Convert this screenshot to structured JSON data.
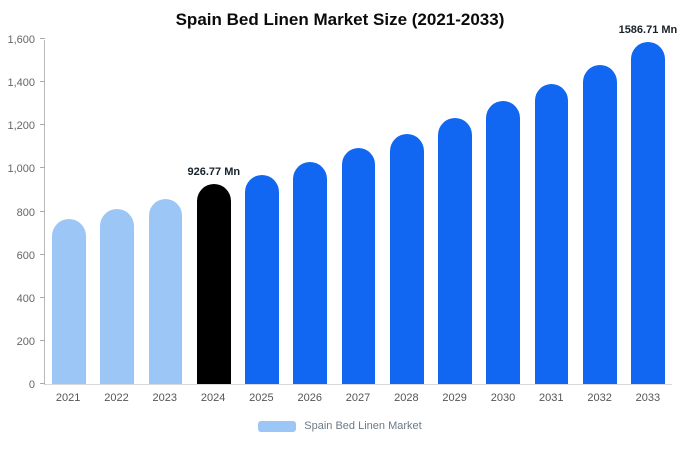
{
  "legend": {
    "label": "Spain Bed Linen Market",
    "swatch_color": "#9cc6f6"
  },
  "chart_data": {
    "type": "bar",
    "title": "Spain Bed Linen Market Size (2021-2033)",
    "categories": [
      "2021",
      "2022",
      "2023",
      "2024",
      "2025",
      "2026",
      "2027",
      "2028",
      "2029",
      "2030",
      "2031",
      "2032",
      "2033"
    ],
    "values": [
      765,
      810,
      860,
      926.77,
      970,
      1030,
      1095,
      1160,
      1235,
      1312,
      1392,
      1480,
      1586.71
    ],
    "bar_colors": [
      "#9cc6f6",
      "#9cc6f6",
      "#9cc6f6",
      "#000000",
      "#1267f2",
      "#1267f2",
      "#1267f2",
      "#1267f2",
      "#1267f2",
      "#1267f2",
      "#1267f2",
      "#1267f2",
      "#1267f2"
    ],
    "annotations": [
      {
        "index": 3,
        "text": "926.77 Mn"
      },
      {
        "index": 12,
        "text": "1586.71 Mn"
      }
    ],
    "xlabel": "",
    "ylabel": "",
    "ylim": [
      0,
      1600
    ],
    "yticks": [
      0,
      200,
      400,
      600,
      800,
      1000,
      1200,
      1400,
      1600
    ],
    "ytick_labels": [
      "0",
      "200",
      "400",
      "600",
      "800",
      "1,000",
      "1,200",
      "1,400",
      "1,600"
    ],
    "grid": false,
    "legend_position": "bottom",
    "legend_entries": [
      "Spain Bed Linen Market"
    ]
  }
}
